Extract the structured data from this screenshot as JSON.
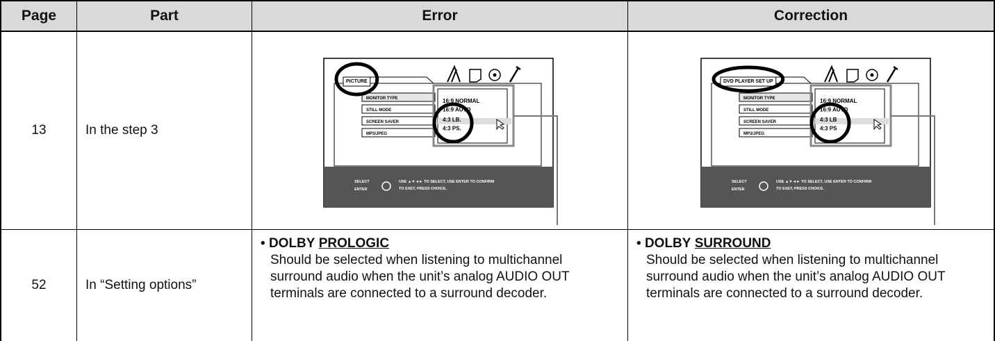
{
  "table": {
    "headers": [
      "Page",
      "Part",
      "Error",
      "Correction"
    ],
    "rows": [
      {
        "page": "13",
        "part": "In the step 3",
        "error": {
          "menu_title": "PICTURE",
          "items": [
            "MONITOR TYPE",
            "STILL MODE",
            "SCREEN SAVER",
            "MP3/JPEG"
          ],
          "options": [
            "16:9 NORMAL",
            "16:9 AUTO",
            "4:3 LB.",
            "4:3 PS."
          ],
          "footer_keys": [
            "SELECT",
            "ENTER"
          ],
          "footer_text": [
            "USE ▲▼◄► TO SELECT, USE ENTER TO CONFIRM",
            "TO EXET, PRESS CHOICE."
          ]
        },
        "correction": {
          "menu_title": "DVD PLAYER SET UP",
          "items": [
            "MONITOR TYPE",
            "STILL MODE",
            "SCREEN SAVER",
            "MP3/JPEG"
          ],
          "options": [
            "16:9 NORMAL",
            "16:9 AUTO",
            "4:3 LB",
            "4:3 PS"
          ],
          "footer_keys": [
            "SELECT",
            "ENTER"
          ],
          "footer_text": [
            "USE ▲▼◄► TO SELECT, USE ENTER TO CONFIRM",
            "TO EXET, PRESS CHOICE."
          ]
        }
      },
      {
        "page": "52",
        "part": "In “Setting options”",
        "error": {
          "bullet": "•",
          "lead": "DOLBY",
          "term": "PROLOGIC",
          "body": "Should be selected when listening to multichannel surround audio when the unit’s analog AUDIO OUT terminals are connected to a surround decoder."
        },
        "correction": {
          "bullet": "•",
          "lead": "DOLBY",
          "term": "SURROUND",
          "body": "Should be selected when listening to multichannel surround audio when the unit’s analog AUDIO OUT terminals are connected to a surround decoder."
        }
      }
    ]
  }
}
